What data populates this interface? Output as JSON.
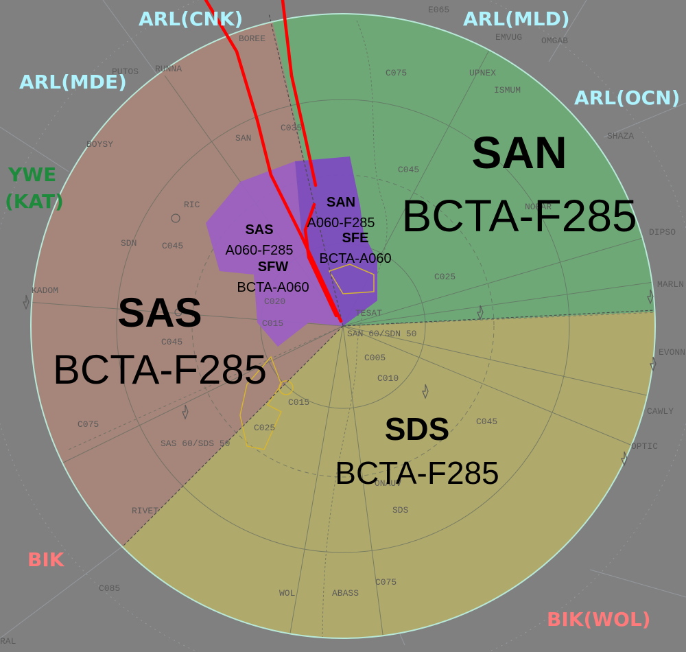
{
  "colors": {
    "background": "#808080",
    "san_sector": "#6fa877",
    "sas_sector": "#a6857a",
    "sds_sector": "#b0a96c",
    "inner_sector": "#9b5fc3",
    "inner_dark": "#7d4cc0",
    "track_red": "#ff0000",
    "arl_label": "#aef4ff",
    "ywe_label": "#1e8a3c",
    "bik_label": "#ff7b7b",
    "fix_label": "#5a5a5a"
  },
  "adjacent_units": [
    {
      "text": "ARL(CNK)",
      "group": "arl"
    },
    {
      "text": "ARL(MLD)",
      "group": "arl"
    },
    {
      "text": "ARL(MDE)",
      "group": "arl"
    },
    {
      "text": "ARL(OCN)",
      "group": "arl"
    },
    {
      "text": "YWE",
      "group": "ywe"
    },
    {
      "text": "(KAT)",
      "group": "ywe"
    },
    {
      "text": "BIK",
      "group": "bik"
    },
    {
      "text": "BIK(WOL)",
      "group": "bik"
    }
  ],
  "sectors": {
    "san": {
      "name": "SAN",
      "limits": "BCTA-F285"
    },
    "sas": {
      "name": "SAS",
      "limits": "BCTA-F285"
    },
    "sds": {
      "name": "SDS",
      "limits": "BCTA-F285"
    },
    "inner_san": {
      "name": "SAN",
      "limits": "A060-F285"
    },
    "inner_sas": {
      "name": "SAS",
      "limits": "A060-F285"
    },
    "sfe": {
      "name": "SFE",
      "limits": "BCTA-A060"
    },
    "sfw": {
      "name": "SFW",
      "limits": "BCTA-A060"
    }
  },
  "fixes": [
    "E065",
    "EMVUG",
    "OMGAB",
    "UPNEX",
    "ISMUM",
    "C075",
    "BOREE",
    "PUTOS",
    "RUNNA",
    "C035",
    "SAN",
    "BOYSY",
    "C045",
    "SHAZA",
    "RIC",
    "NOBAR",
    "DIPSO",
    "SDN",
    "C045",
    "C025",
    "MARLN",
    "KADOM",
    "C020",
    "C015",
    "TESAT",
    "SAN 60/SDN 50",
    "C045",
    "C005",
    "EVONN",
    "C010",
    "C015",
    "C075",
    "C045",
    "CAWLY",
    "C025",
    "SAS 60/SDS 50",
    "OPTIC",
    "ONAUV",
    "SDS",
    "RIVET",
    "C085",
    "C075",
    "WOL",
    "ABASS",
    "RAL"
  ]
}
